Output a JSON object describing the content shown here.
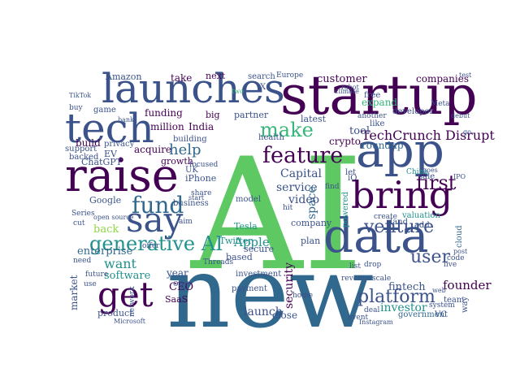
{
  "palette": {
    "purple": "#440154",
    "indigo": "#3b528b",
    "blue": "#31688e",
    "teal": "#21918c",
    "green": "#35b779",
    "lime": "#5ec962",
    "yellow": "#c8d82a",
    "lightgreen": "#90d743"
  },
  "words": [
    "AI",
    "new",
    "startup",
    "launches",
    "tech",
    "raise",
    "app",
    "data",
    "bring",
    "say",
    "get",
    "fund",
    "generative AI",
    "make",
    "feature",
    "first",
    "venture",
    "platform",
    "user",
    "TechCrunch Disrupt",
    "help",
    "customer",
    "companies",
    "investor",
    "founder",
    "Capital",
    "Apple",
    "security",
    "service",
    "space",
    "video",
    "launch",
    "fintech",
    "software",
    "enterprise",
    "market",
    "CEO",
    "million",
    "funding",
    "India",
    "take",
    "next",
    "partner",
    "latest",
    "tool",
    "expand",
    "roundup",
    "crypto",
    "acquire",
    "growth",
    "build",
    "back",
    "want",
    "SaaS",
    "year",
    "one",
    "product",
    "Google",
    "iPhone",
    "Tesla",
    "Twitter",
    "close",
    "plan",
    "company",
    "secure",
    "based",
    "model",
    "investment",
    "payment",
    "government",
    "VC",
    "way",
    "team",
    "Amazon",
    "ChatGPT",
    "EV",
    "support",
    "privacy",
    "backed",
    "business",
    "building",
    "big",
    "free",
    "like",
    "game",
    "health",
    "search",
    "home",
    "cloud",
    "valuation",
    "sale",
    "land",
    "create",
    "add",
    "deal",
    "event",
    "developer",
    "another",
    "Europe",
    "X",
    "UK",
    "open source",
    "Microsoft",
    "Instagram",
    "system",
    "web",
    "live",
    "code",
    "post",
    "Meta",
    "China",
    "Threads",
    "Series",
    "network",
    "future",
    "need",
    "use",
    "cut",
    "buy",
    "TikTok",
    "bank",
    "India",
    "test",
    "debut",
    "let",
    "iO",
    "go",
    "goes",
    "find",
    "hit",
    "aim",
    "offer",
    "share",
    "start",
    "focused",
    "powered",
    "IPO",
    "first",
    "show",
    "list",
    "revenue",
    "scale",
    "firm",
    "drop",
    "two",
    "robotic",
    "robot",
    "climate",
    "sell"
  ]
}
